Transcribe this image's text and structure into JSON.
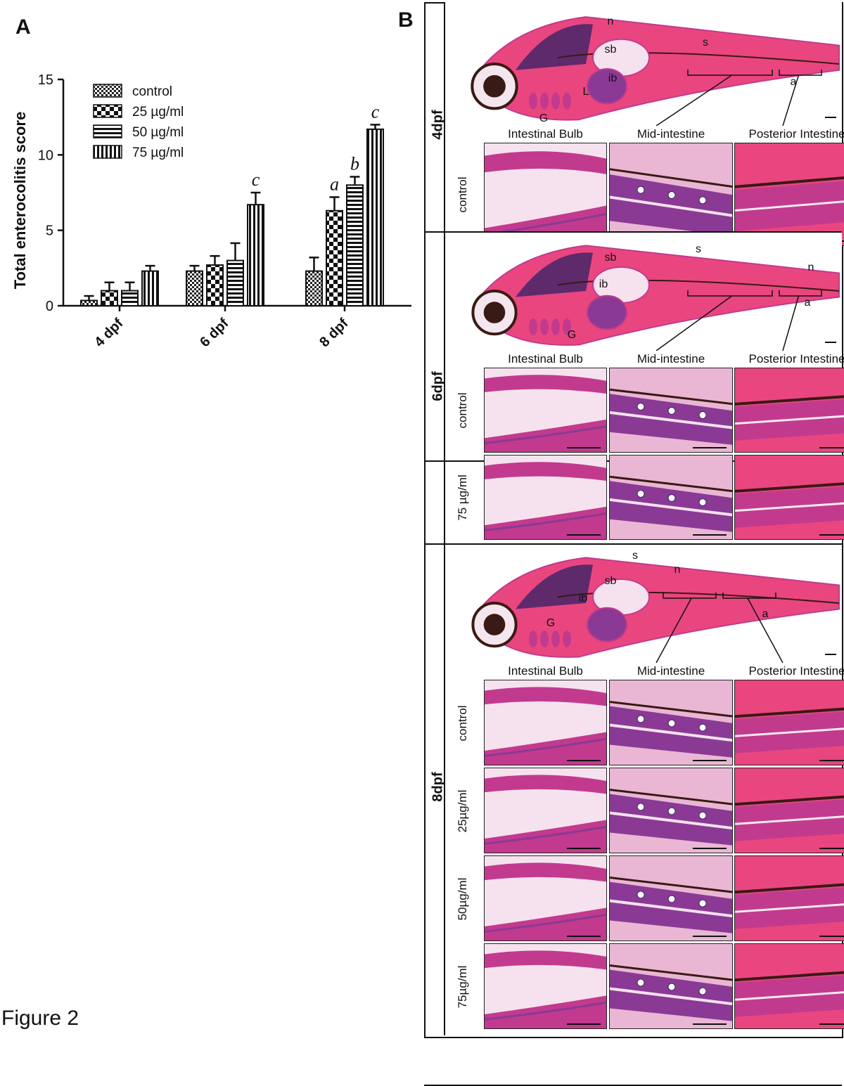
{
  "figure": {
    "caption": "Figure 2",
    "panel_a_letter": "A",
    "panel_b_letter": "B"
  },
  "chart_data": {
    "type": "bar",
    "title": "",
    "xlabel": "",
    "ylabel": "Total enterocolitis score",
    "ylim": [
      0,
      15
    ],
    "yticks": [
      0,
      5,
      10,
      15
    ],
    "categories": [
      "4 dpf",
      "6 dpf",
      "8 dpf"
    ],
    "legend_position": "top-left",
    "series": [
      {
        "name": "control",
        "pattern": "fine-checker",
        "values": [
          0.35,
          2.3,
          2.3
        ],
        "errors": [
          0.3,
          0.35,
          0.9
        ],
        "labels": [
          "",
          "",
          ""
        ]
      },
      {
        "name": "25 µg/ml",
        "pattern": "coarse-checker",
        "values": [
          1.0,
          2.7,
          6.3
        ],
        "errors": [
          0.55,
          0.6,
          0.9
        ],
        "labels": [
          "",
          "",
          "a"
        ]
      },
      {
        "name": "50 µg/ml",
        "pattern": "horizontal",
        "values": [
          1.0,
          3.0,
          8.0
        ],
        "errors": [
          0.55,
          1.15,
          0.55
        ],
        "labels": [
          "",
          "",
          "b"
        ]
      },
      {
        "name": "75 µg/ml",
        "pattern": "vertical",
        "values": [
          2.3,
          6.7,
          11.7
        ],
        "errors": [
          0.35,
          0.8,
          0.3
        ],
        "labels": [
          "",
          "c",
          "c"
        ]
      }
    ]
  },
  "panel_b": {
    "region_headers": [
      "Intestinal Bulb",
      "Mid-intestine",
      "Posterior Intestine"
    ],
    "groups": [
      {
        "age": "4dpf",
        "overview_labels": [
          "n",
          "sb",
          "s",
          "ib",
          "L",
          "G",
          "a"
        ],
        "rows": [
          "control"
        ]
      },
      {
        "age": "6dpf",
        "overview_labels": [
          "sb",
          "s",
          "n",
          "ib",
          "G",
          "a"
        ],
        "rows": [
          "control",
          "75 µg/ml"
        ]
      },
      {
        "age": "8dpf",
        "overview_labels": [
          "s",
          "n",
          "sb",
          "ib",
          "G",
          "a"
        ],
        "rows": [
          "control",
          "25µg/ml",
          "50µg/ml",
          "75µg/ml"
        ]
      }
    ],
    "colors": {
      "muscle_pink": "#e9467f",
      "tissue_magenta": "#c23a8e",
      "epithelium_purple": "#8a3a94",
      "nuclei_dark": "#3b2368",
      "lumen_pale": "#f6e2ee",
      "pigment_dark": "#3a1a14"
    }
  }
}
